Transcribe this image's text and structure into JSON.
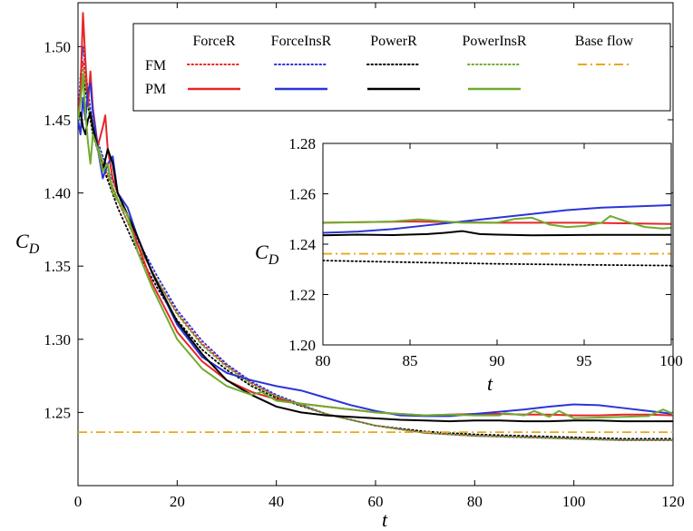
{
  "chart_data": [
    {
      "type": "line",
      "xlabel": "t",
      "ylabel": "C_D",
      "xlim": [
        0,
        120
      ],
      "ylim": [
        1.2,
        1.53
      ],
      "xticks": [
        "0",
        "20",
        "40",
        "60",
        "80",
        "100",
        "120"
      ],
      "yticks": [
        "1.25",
        "1.30",
        "1.35",
        "1.40",
        "1.45",
        "1.50"
      ],
      "grid": false,
      "legend": {
        "placement": "top",
        "columns": [
          "ForceR",
          "ForceInsR",
          "PowerR",
          "PowerInsR",
          "Base flow"
        ],
        "rows": [
          "FM",
          "PM"
        ]
      },
      "series": [
        {
          "name": "ForceR",
          "row": "FM",
          "color": "#e8262a",
          "style": "dotted",
          "x": [
            0,
            0.5,
            1,
            2,
            3,
            5,
            8,
            12,
            16,
            20,
            25,
            30,
            35,
            40,
            50,
            60,
            70,
            80,
            90,
            100,
            110,
            120
          ],
          "y": [
            1.45,
            1.475,
            1.49,
            1.465,
            1.44,
            1.42,
            1.395,
            1.365,
            1.34,
            1.318,
            1.297,
            1.282,
            1.27,
            1.261,
            1.249,
            1.241,
            1.236,
            1.234,
            1.233,
            1.232,
            1.231,
            1.231
          ]
        },
        {
          "name": "ForceInsR",
          "row": "FM",
          "color": "#2b35d6",
          "style": "dotted",
          "x": [
            0,
            0.5,
            1,
            2,
            3,
            5,
            8,
            12,
            16,
            20,
            25,
            30,
            35,
            40,
            50,
            60,
            70,
            80,
            90,
            100,
            110,
            120
          ],
          "y": [
            1.45,
            1.48,
            1.5,
            1.47,
            1.445,
            1.425,
            1.4,
            1.368,
            1.343,
            1.32,
            1.299,
            1.283,
            1.271,
            1.262,
            1.249,
            1.241,
            1.236,
            1.234,
            1.233,
            1.232,
            1.231,
            1.231
          ]
        },
        {
          "name": "PowerR",
          "row": "FM",
          "color": "#000000",
          "style": "dotted",
          "x": [
            0,
            0.5,
            1,
            2,
            3,
            5,
            8,
            12,
            16,
            20,
            25,
            30,
            35,
            40,
            50,
            60,
            70,
            80,
            90,
            100,
            110,
            120
          ],
          "y": [
            1.45,
            1.465,
            1.48,
            1.46,
            1.44,
            1.418,
            1.39,
            1.36,
            1.335,
            1.313,
            1.293,
            1.279,
            1.268,
            1.26,
            1.249,
            1.241,
            1.237,
            1.235,
            1.234,
            1.233,
            1.232,
            1.232
          ]
        },
        {
          "name": "PowerInsR",
          "row": "FM",
          "color": "#6fac2f",
          "style": "dotted",
          "x": [
            0,
            0.5,
            1,
            2,
            3,
            5,
            8,
            12,
            16,
            20,
            25,
            30,
            35,
            40,
            50,
            60,
            70,
            80,
            90,
            100,
            110,
            120
          ],
          "y": [
            1.45,
            1.47,
            1.485,
            1.462,
            1.442,
            1.422,
            1.396,
            1.365,
            1.34,
            1.317,
            1.296,
            1.281,
            1.269,
            1.261,
            1.249,
            1.241,
            1.236,
            1.234,
            1.233,
            1.232,
            1.231,
            1.231
          ]
        },
        {
          "name": "ForceR",
          "row": "PM",
          "color": "#e8262a",
          "style": "solid",
          "x": [
            0,
            0.5,
            1,
            1.5,
            2,
            2.5,
            3,
            4,
            5,
            5.5,
            6,
            7,
            8,
            10,
            12,
            15,
            20,
            25,
            30,
            35,
            40,
            45,
            50,
            55,
            60,
            65,
            70,
            75,
            80,
            85,
            90,
            95,
            100,
            105,
            110,
            115,
            120
          ],
          "y": [
            1.45,
            1.47,
            1.523,
            1.49,
            1.46,
            1.483,
            1.458,
            1.432,
            1.445,
            1.453,
            1.43,
            1.41,
            1.4,
            1.385,
            1.365,
            1.338,
            1.305,
            1.285,
            1.272,
            1.264,
            1.259,
            1.256,
            1.254,
            1.252,
            1.25,
            1.249,
            1.248,
            1.2485,
            1.249,
            1.249,
            1.2485,
            1.2485,
            1.248,
            1.248,
            1.2485,
            1.2485,
            1.248
          ]
        },
        {
          "name": "ForceInsR",
          "row": "PM",
          "color": "#2b35d6",
          "style": "solid",
          "x": [
            0,
            0.5,
            1,
            1.5,
            2,
            2.5,
            3,
            4,
            5,
            6,
            7,
            8,
            10,
            12,
            15,
            20,
            25,
            30,
            35,
            40,
            45,
            50,
            55,
            60,
            65,
            70,
            75,
            80,
            85,
            90,
            95,
            100,
            105,
            110,
            115,
            120
          ],
          "y": [
            1.45,
            1.44,
            1.465,
            1.45,
            1.47,
            1.475,
            1.455,
            1.43,
            1.41,
            1.42,
            1.425,
            1.4,
            1.39,
            1.37,
            1.345,
            1.31,
            1.288,
            1.277,
            1.272,
            1.268,
            1.265,
            1.26,
            1.255,
            1.251,
            1.248,
            1.2475,
            1.2475,
            1.249,
            1.2505,
            1.252,
            1.254,
            1.2555,
            1.255,
            1.253,
            1.251,
            1.249
          ]
        },
        {
          "name": "PowerR",
          "row": "PM",
          "color": "#000000",
          "style": "solid",
          "x": [
            0,
            0.5,
            1,
            1.5,
            2,
            2.5,
            3,
            4,
            5,
            6,
            7,
            8,
            10,
            12,
            15,
            20,
            25,
            30,
            35,
            40,
            45,
            50,
            55,
            60,
            65,
            70,
            75,
            80,
            85,
            90,
            95,
            100,
            105,
            110,
            115,
            120
          ],
          "y": [
            1.45,
            1.455,
            1.445,
            1.44,
            1.45,
            1.455,
            1.445,
            1.43,
            1.415,
            1.43,
            1.42,
            1.4,
            1.385,
            1.37,
            1.345,
            1.312,
            1.29,
            1.272,
            1.262,
            1.254,
            1.25,
            1.248,
            1.247,
            1.246,
            1.245,
            1.2445,
            1.244,
            1.2445,
            1.2445,
            1.244,
            1.244,
            1.2445,
            1.2445,
            1.244,
            1.244,
            1.244
          ]
        },
        {
          "name": "PowerInsR",
          "row": "PM",
          "color": "#6fac2f",
          "style": "solid",
          "x": [
            0,
            0.5,
            1,
            1.5,
            2,
            2.5,
            3,
            4,
            5,
            6,
            7,
            8,
            10,
            12,
            15,
            20,
            25,
            30,
            35,
            37,
            40,
            45,
            50,
            55,
            60,
            65,
            70,
            75,
            80,
            85,
            86,
            90,
            92,
            95,
            97,
            100,
            105,
            110,
            115,
            118,
            120
          ],
          "y": [
            1.45,
            1.462,
            1.48,
            1.455,
            1.435,
            1.42,
            1.44,
            1.43,
            1.415,
            1.42,
            1.4,
            1.395,
            1.385,
            1.36,
            1.335,
            1.3,
            1.28,
            1.268,
            1.262,
            1.264,
            1.258,
            1.256,
            1.254,
            1.252,
            1.25,
            1.249,
            1.248,
            1.2485,
            1.248,
            1.248,
            1.2495,
            1.248,
            1.251,
            1.247,
            1.251,
            1.246,
            1.2465,
            1.247,
            1.2475,
            1.252,
            1.249
          ]
        },
        {
          "name": "Base flow",
          "row": "",
          "color": "#e8a817",
          "style": "dashdot",
          "x": [
            0,
            120
          ],
          "y": [
            1.2365,
            1.2365
          ]
        }
      ]
    },
    {
      "type": "line",
      "xlabel": "t",
      "ylabel": "C_D",
      "xlim": [
        80,
        100
      ],
      "ylim": [
        1.2,
        1.28
      ],
      "xticks": [
        "80",
        "85",
        "90",
        "95",
        "100"
      ],
      "yticks": [
        "1.20",
        "1.22",
        "1.24",
        "1.26",
        "1.28"
      ],
      "grid": false,
      "series": [
        {
          "name": "ForceR",
          "row": "PM",
          "color": "#e8262a",
          "style": "solid",
          "x": [
            80,
            85,
            90,
            95,
            100
          ],
          "y": [
            1.2485,
            1.249,
            1.2485,
            1.2485,
            1.248
          ]
        },
        {
          "name": "ForceInsR",
          "row": "PM",
          "color": "#2b35d6",
          "style": "solid",
          "x": [
            80,
            82,
            84,
            86,
            88,
            90,
            92,
            94,
            96,
            98,
            100
          ],
          "y": [
            1.2445,
            1.245,
            1.246,
            1.2475,
            1.249,
            1.2505,
            1.252,
            1.2535,
            1.2545,
            1.255,
            1.2555
          ]
        },
        {
          "name": "PowerR",
          "row": "PM",
          "color": "#000000",
          "style": "solid",
          "x": [
            80,
            82,
            84,
            86,
            87,
            88,
            89,
            90,
            92,
            94,
            96,
            98,
            100
          ],
          "y": [
            1.2435,
            1.2438,
            1.2436,
            1.244,
            1.2445,
            1.2452,
            1.244,
            1.2438,
            1.2435,
            1.2436,
            1.2437,
            1.2437,
            1.2437
          ]
        },
        {
          "name": "PowerInsR",
          "row": "PM",
          "color": "#6fac2f",
          "style": "solid",
          "x": [
            80,
            82,
            84,
            85.5,
            86.5,
            88,
            90,
            91,
            92,
            93,
            94,
            95,
            96,
            96.5,
            97.5,
            98.5,
            99.5,
            100
          ],
          "y": [
            1.2485,
            1.2487,
            1.249,
            1.2498,
            1.2493,
            1.2485,
            1.2485,
            1.25,
            1.2505,
            1.2478,
            1.2468,
            1.2472,
            1.2485,
            1.2512,
            1.2488,
            1.2468,
            1.2462,
            1.2465
          ]
        },
        {
          "name": "FM",
          "row": "FM",
          "color": "#000000",
          "style": "dotted",
          "x": [
            80,
            85,
            90,
            95,
            100
          ],
          "y": [
            1.2335,
            1.2328,
            1.2322,
            1.2318,
            1.2315
          ]
        },
        {
          "name": "Base flow",
          "row": "",
          "color": "#e8a817",
          "style": "dashdot",
          "x": [
            80,
            100
          ],
          "y": [
            1.2362,
            1.2362
          ]
        }
      ]
    }
  ]
}
